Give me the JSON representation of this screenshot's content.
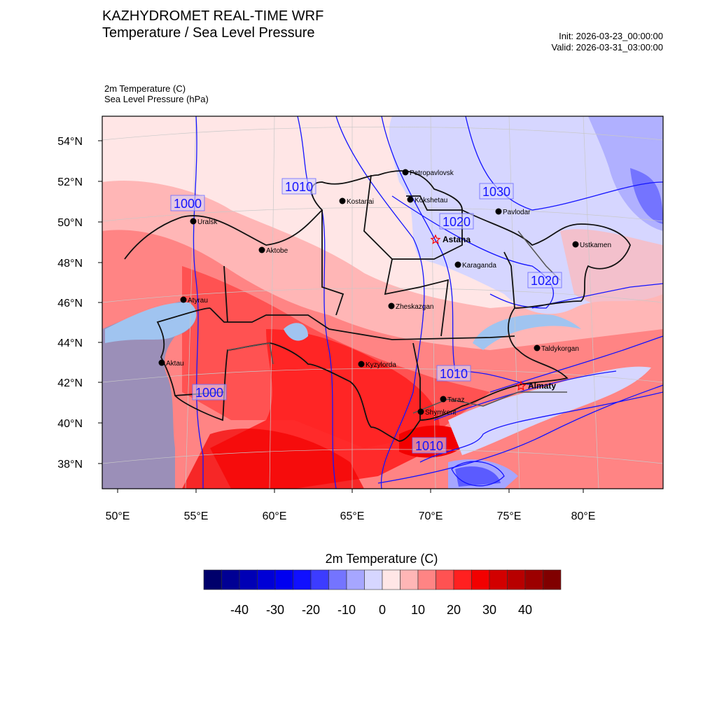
{
  "header": {
    "title": "KAZHYDROMET REAL-TIME WRF",
    "subtitle": "Temperature / Sea Level Pressure",
    "init": "Init: 2026-03-23_00:00:00",
    "valid": "Valid: 2026-03-31_03:00:00",
    "field1": "2m Temperature   (C)",
    "field2": "Sea Level Pressure   (hPa)"
  },
  "axes": {
    "lat_labels": [
      "54°N",
      "52°N",
      "50°N",
      "48°N",
      "46°N",
      "44°N",
      "42°N",
      "40°N",
      "38°N"
    ],
    "lon_labels": [
      "50°E",
      "55°E",
      "60°E",
      "65°E",
      "70°E",
      "75°E",
      "80°E"
    ]
  },
  "cities": [
    {
      "name": "Petropavlovsk",
      "capital": false
    },
    {
      "name": "Kostanai",
      "capital": false
    },
    {
      "name": "Kokshetau",
      "capital": false
    },
    {
      "name": "Pavlodar",
      "capital": false
    },
    {
      "name": "Uralsk",
      "capital": false
    },
    {
      "name": "Aktobe",
      "capital": false
    },
    {
      "name": "Astana",
      "capital": true
    },
    {
      "name": "Karaganda",
      "capital": false
    },
    {
      "name": "Ustkamen",
      "capital": false
    },
    {
      "name": "Atyrau",
      "capital": false
    },
    {
      "name": "Zheskazgan",
      "capital": false
    },
    {
      "name": "Aktau",
      "capital": false
    },
    {
      "name": "Kyzylorda",
      "capital": false
    },
    {
      "name": "Taldykorgan",
      "capital": false
    },
    {
      "name": "Almaty",
      "capital": true
    },
    {
      "name": "Taraz",
      "capital": false
    },
    {
      "name": "Shymkent",
      "capital": false
    }
  ],
  "isobar_labels": [
    "1010",
    "1000",
    "1030",
    "1020",
    "1020",
    "1010",
    "1000",
    "1010"
  ],
  "colorbar": {
    "title": "2m Temperature  (C)",
    "boundaries_step": 5,
    "colors": [
      "#00006b",
      "#000094",
      "#0000b5",
      "#0000d6",
      "#0000f0",
      "#1010ff",
      "#3c3cff",
      "#7474ff",
      "#a6a6ff",
      "#d6d6ff",
      "#ffe6e6",
      "#ffb6b6",
      "#ff8484",
      "#ff5252",
      "#ff2020",
      "#f20000",
      "#d20000",
      "#b80000",
      "#9c0000",
      "#800000"
    ],
    "labels": [
      "-40",
      "-30",
      "-20",
      "-10",
      "0",
      "10",
      "20",
      "30",
      "40"
    ]
  }
}
